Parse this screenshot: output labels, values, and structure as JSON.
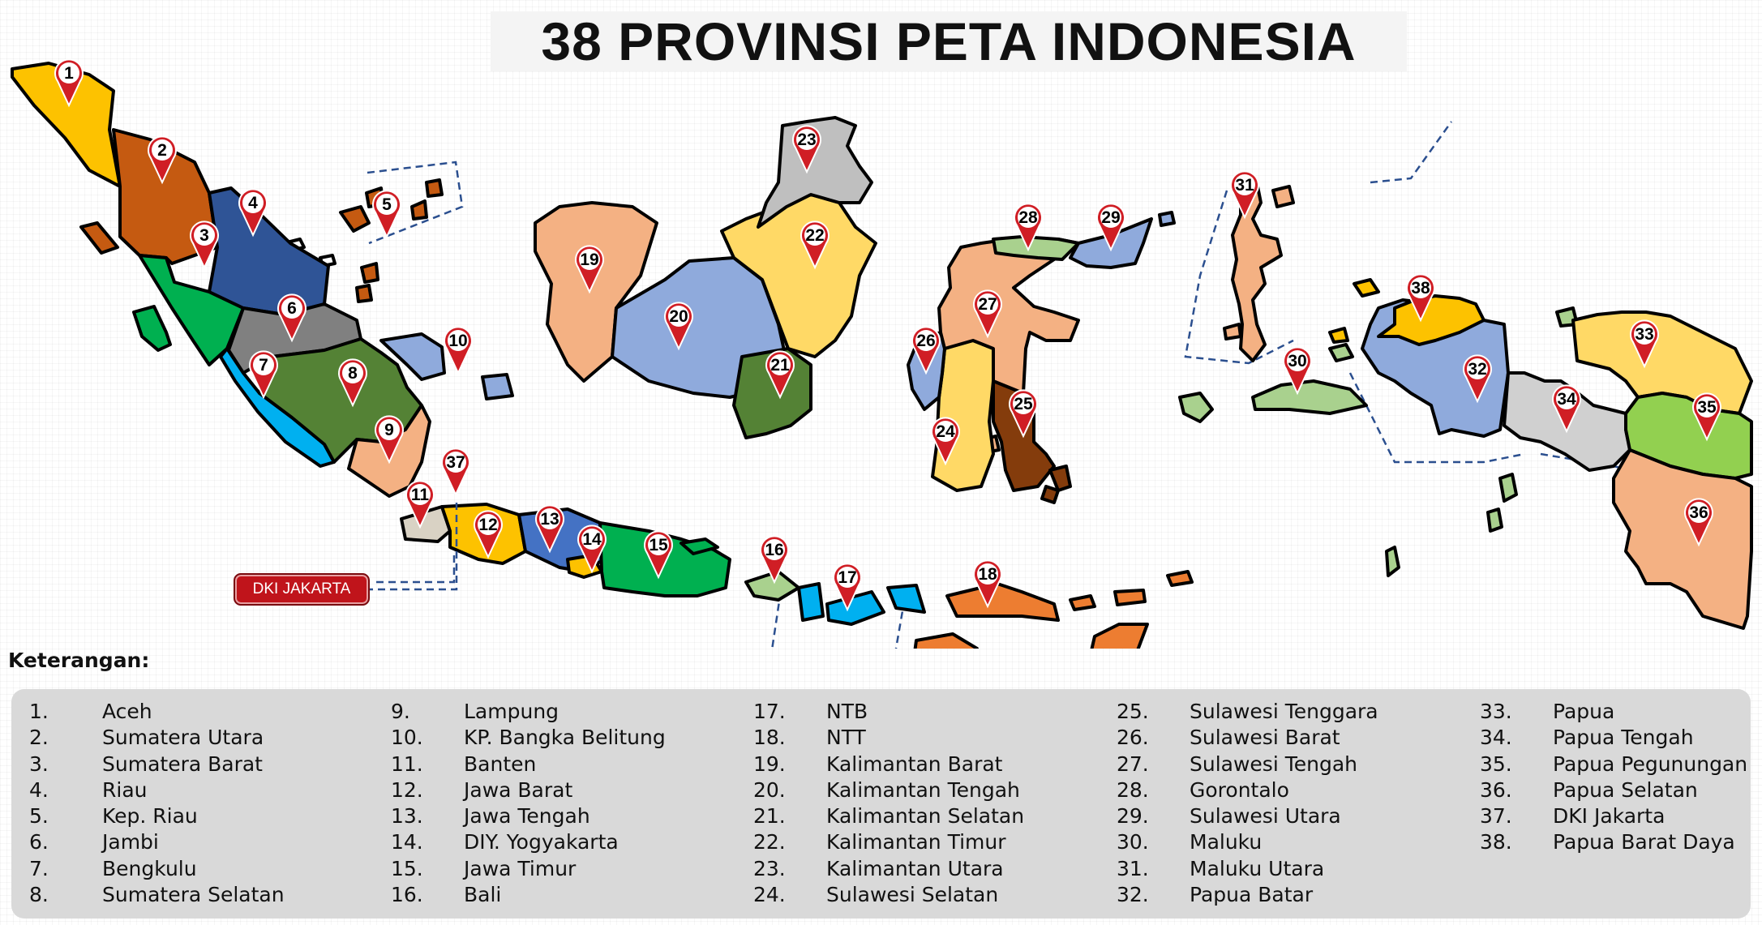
{
  "title": "38 PROVINSI  PETA INDONESIA",
  "callout": "DKI JAKARTA",
  "legend_title": "Keterangan:",
  "colors": {
    "pin": "#d01e25",
    "boundary": "#2b4f8f",
    "legend_bg": "#d9d9d9",
    "callout_bg": "#c0141b"
  },
  "provinces": [
    {
      "num": "1.",
      "name": "Aceh",
      "color": "#fdc200"
    },
    {
      "num": "2.",
      "name": "Sumatera Utara",
      "color": "#c55a11"
    },
    {
      "num": "3.",
      "name": "Sumatera Barat",
      "color": "#00b050"
    },
    {
      "num": "4.",
      "name": "Riau",
      "color": "#2f5496"
    },
    {
      "num": "5.",
      "name": "Kep. Riau",
      "color": "#c55a11"
    },
    {
      "num": "6.",
      "name": "Jambi",
      "color": "#808080"
    },
    {
      "num": "7.",
      "name": "Bengkulu",
      "color": "#00b0f0"
    },
    {
      "num": "8.",
      "name": "Sumatera Selatan",
      "color": "#548235"
    },
    {
      "num": "9.",
      "name": "Lampung",
      "color": "#f4b183"
    },
    {
      "num": "10.",
      "name": "KP. Bangka Belitung",
      "color": "#8faadc"
    },
    {
      "num": "11.",
      "name": "Banten",
      "color": "#d9d2c4"
    },
    {
      "num": "12.",
      "name": "Jawa Barat",
      "color": "#fdc200"
    },
    {
      "num": "13.",
      "name": "Jawa Tengah",
      "color": "#4472c4"
    },
    {
      "num": "14.",
      "name": "DIY. Yogyakarta",
      "color": "#fdc200"
    },
    {
      "num": "15.",
      "name": "Jawa Timur",
      "color": "#00b050"
    },
    {
      "num": "16.",
      "name": "Bali",
      "color": "#a9d18e"
    },
    {
      "num": "17.",
      "name": "NTB",
      "color": "#00b0f0"
    },
    {
      "num": "18.",
      "name": "NTT",
      "color": "#ed7d31"
    },
    {
      "num": "19.",
      "name": "Kalimantan Barat",
      "color": "#f4b183"
    },
    {
      "num": "20.",
      "name": "Kalimantan Tengah",
      "color": "#8faadc"
    },
    {
      "num": "21.",
      "name": "Kalimantan Selatan",
      "color": "#548235"
    },
    {
      "num": "22.",
      "name": "Kalimantan Timur",
      "color": "#ffd966"
    },
    {
      "num": "23.",
      "name": "Kalimantan Utara",
      "color": "#bfbfbf"
    },
    {
      "num": "24.",
      "name": "Sulawesi Selatan",
      "color": "#ffd966"
    },
    {
      "num": "25.",
      "name": "Sulawesi Tenggara",
      "color": "#843c0c"
    },
    {
      "num": "26.",
      "name": "Sulawesi Barat",
      "color": "#8faadc"
    },
    {
      "num": "27.",
      "name": "Sulawesi Tengah",
      "color": "#f4b183"
    },
    {
      "num": "28.",
      "name": "Gorontalo",
      "color": "#a9d18e"
    },
    {
      "num": "29.",
      "name": "Sulawesi Utara",
      "color": "#8faadc"
    },
    {
      "num": "30.",
      "name": "Maluku",
      "color": "#a9d18e"
    },
    {
      "num": "31.",
      "name": "Maluku Utara",
      "color": "#f4b183"
    },
    {
      "num": "32.",
      "name": "Papua Batar",
      "color": "#8faadc"
    },
    {
      "num": "33.",
      "name": "Papua",
      "color": "#ffd966"
    },
    {
      "num": "34.",
      "name": "Papua Tengah",
      "color": "#d0d0d0"
    },
    {
      "num": "35.",
      "name": "Papua Pegunungan",
      "color": "#92d050"
    },
    {
      "num": "36.",
      "name": "Papua Selatan",
      "color": "#f4b183"
    },
    {
      "num": "37.",
      "name": "DKI Jakarta",
      "color": "#d01e25"
    },
    {
      "num": "38.",
      "name": "Papua Barat Daya",
      "color": "#fdc200"
    }
  ]
}
